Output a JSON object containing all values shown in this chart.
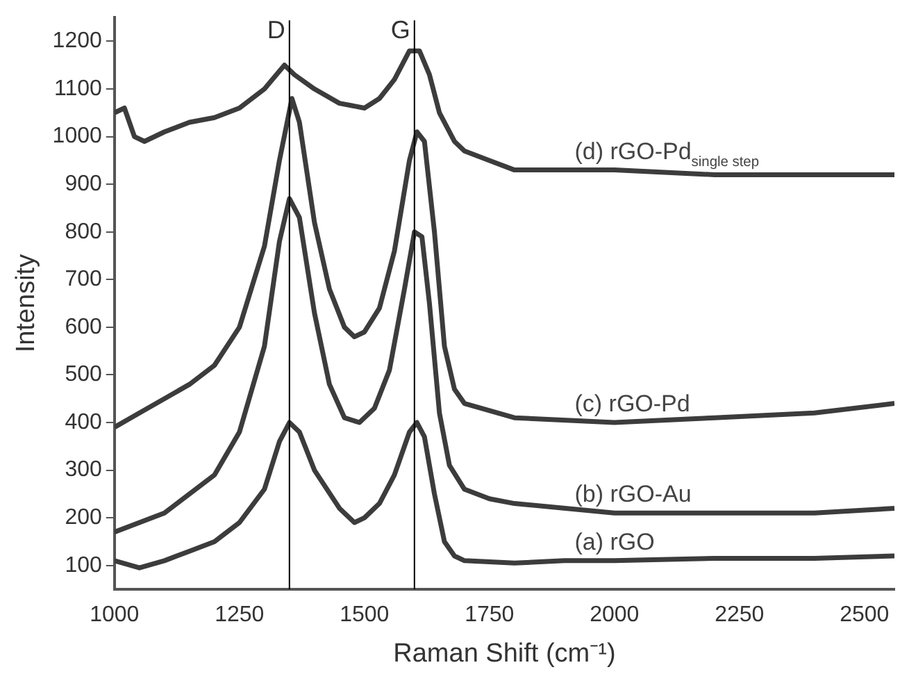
{
  "chart_data": {
    "type": "line",
    "xlabel": "Raman Shift (cm⁻¹)",
    "ylabel": "Intensity",
    "xlim": [
      1000,
      2560
    ],
    "xticks": [
      1000,
      1250,
      1500,
      1750,
      2000,
      2250,
      2500
    ],
    "ylim": [
      50,
      1250
    ],
    "yticks": [
      100,
      200,
      300,
      400,
      500,
      600,
      700,
      800,
      900,
      1000,
      1100,
      1200
    ],
    "grid": false,
    "legend": false,
    "marker": "none",
    "line_style": "solid",
    "ref_lines": [
      {
        "axis": "x",
        "value": 1350,
        "label": "D",
        "color": "#000000"
      },
      {
        "axis": "x",
        "value": 1600,
        "label": "G",
        "color": "#000000"
      }
    ],
    "series": [
      {
        "name": "(a) rGO",
        "color": "#3c3c3c",
        "x": [
          1000,
          1050,
          1100,
          1150,
          1200,
          1250,
          1300,
          1330,
          1350,
          1370,
          1400,
          1450,
          1480,
          1500,
          1530,
          1560,
          1590,
          1605,
          1620,
          1640,
          1660,
          1680,
          1700,
          1800,
          1900,
          2000,
          2200,
          2400,
          2560
        ],
        "values": [
          110,
          95,
          110,
          130,
          150,
          190,
          260,
          360,
          400,
          380,
          300,
          220,
          190,
          200,
          230,
          290,
          380,
          400,
          370,
          250,
          150,
          120,
          110,
          105,
          110,
          110,
          115,
          115,
          120
        ]
      },
      {
        "name": "(b) rGO-Au",
        "color": "#3c3c3c",
        "x": [
          1000,
          1100,
          1200,
          1250,
          1300,
          1330,
          1350,
          1370,
          1400,
          1430,
          1460,
          1490,
          1520,
          1550,
          1580,
          1600,
          1615,
          1630,
          1650,
          1670,
          1700,
          1750,
          1800,
          2000,
          2200,
          2400,
          2560
        ],
        "values": [
          170,
          210,
          290,
          380,
          560,
          780,
          870,
          830,
          630,
          480,
          410,
          400,
          430,
          510,
          680,
          800,
          790,
          650,
          420,
          310,
          260,
          240,
          230,
          210,
          210,
          210,
          220
        ]
      },
      {
        "name": "(c) rGO-Pd",
        "color": "#3c3c3c",
        "x": [
          1000,
          1050,
          1100,
          1150,
          1200,
          1250,
          1300,
          1330,
          1355,
          1370,
          1400,
          1430,
          1460,
          1480,
          1500,
          1530,
          1560,
          1590,
          1605,
          1620,
          1640,
          1660,
          1680,
          1700,
          1800,
          2000,
          2200,
          2400,
          2560
        ],
        "values": [
          390,
          420,
          450,
          480,
          520,
          600,
          770,
          950,
          1080,
          1030,
          820,
          680,
          600,
          580,
          590,
          640,
          760,
          950,
          1010,
          990,
          800,
          560,
          470,
          440,
          410,
          400,
          410,
          420,
          440
        ]
      },
      {
        "name": "(d) rGO-Pd$_{single step}$",
        "color": "#3c3c3c",
        "x": [
          1000,
          1020,
          1040,
          1060,
          1100,
          1150,
          1200,
          1250,
          1300,
          1340,
          1360,
          1400,
          1450,
          1500,
          1530,
          1560,
          1590,
          1610,
          1630,
          1650,
          1680,
          1700,
          1750,
          1800,
          1900,
          2000,
          2200,
          2400,
          2560
        ],
        "values": [
          1050,
          1060,
          1000,
          990,
          1010,
          1030,
          1040,
          1060,
          1100,
          1150,
          1130,
          1100,
          1070,
          1060,
          1080,
          1120,
          1180,
          1180,
          1130,
          1050,
          990,
          970,
          950,
          930,
          930,
          930,
          920,
          920,
          920
        ]
      }
    ]
  }
}
